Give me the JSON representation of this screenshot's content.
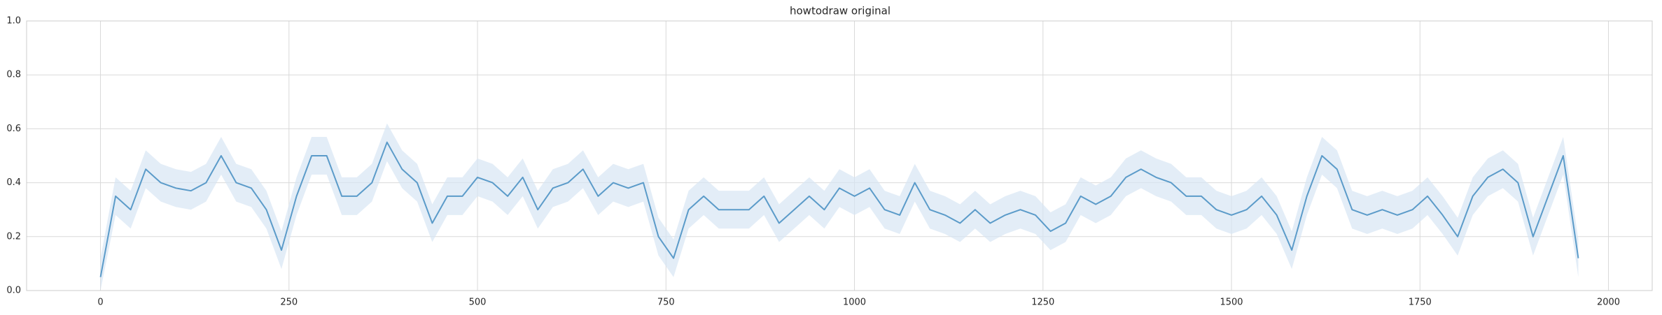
{
  "chart_data": {
    "type": "line",
    "title": "howtodraw original",
    "x": [
      0,
      20,
      40,
      60,
      80,
      100,
      120,
      140,
      160,
      180,
      200,
      220,
      240,
      260,
      280,
      300,
      320,
      340,
      360,
      380,
      400,
      420,
      440,
      460,
      480,
      500,
      520,
      540,
      560,
      580,
      600,
      620,
      640,
      660,
      680,
      700,
      720,
      740,
      760,
      780,
      800,
      820,
      840,
      860,
      880,
      900,
      920,
      940,
      960,
      980,
      1000,
      1020,
      1040,
      1060,
      1080,
      1100,
      1120,
      1140,
      1160,
      1180,
      1200,
      1220,
      1240,
      1260,
      1280,
      1300,
      1320,
      1340,
      1360,
      1380,
      1400,
      1420,
      1440,
      1460,
      1480,
      1500,
      1520,
      1540,
      1560,
      1580,
      1600,
      1620,
      1640,
      1660,
      1680,
      1700,
      1720,
      1740,
      1760,
      1780,
      1800,
      1820,
      1840,
      1860,
      1880,
      1900,
      1920,
      1940,
      1960
    ],
    "series": [
      {
        "color": "#5b9bc9",
        "band_color": "#d7e6f3",
        "values": [
          0.05,
          0.35,
          0.3,
          0.45,
          0.4,
          0.38,
          0.37,
          0.4,
          0.5,
          0.4,
          0.38,
          0.3,
          0.15,
          0.35,
          0.5,
          0.5,
          0.35,
          0.35,
          0.4,
          0.55,
          0.45,
          0.4,
          0.25,
          0.35,
          0.35,
          0.42,
          0.4,
          0.35,
          0.42,
          0.3,
          0.38,
          0.4,
          0.45,
          0.35,
          0.4,
          0.38,
          0.4,
          0.2,
          0.12,
          0.3,
          0.35,
          0.3,
          0.3,
          0.3,
          0.35,
          0.25,
          0.3,
          0.35,
          0.3,
          0.38,
          0.35,
          0.38,
          0.3,
          0.28,
          0.4,
          0.3,
          0.28,
          0.25,
          0.3,
          0.25,
          0.28,
          0.3,
          0.28,
          0.22,
          0.25,
          0.35,
          0.32,
          0.35,
          0.42,
          0.45,
          0.42,
          0.4,
          0.35,
          0.35,
          0.3,
          0.28,
          0.3,
          0.35,
          0.28,
          0.15,
          0.35,
          0.5,
          0.45,
          0.3,
          0.28,
          0.3,
          0.28,
          0.3,
          0.35,
          0.28,
          0.2,
          0.35,
          0.42,
          0.45,
          0.4,
          0.2,
          0.35,
          0.5,
          0.12
        ],
        "lower": [
          0.0,
          0.28,
          0.23,
          0.38,
          0.33,
          0.31,
          0.3,
          0.33,
          0.43,
          0.33,
          0.31,
          0.23,
          0.08,
          0.28,
          0.43,
          0.43,
          0.28,
          0.28,
          0.33,
          0.48,
          0.38,
          0.33,
          0.18,
          0.28,
          0.28,
          0.35,
          0.33,
          0.28,
          0.35,
          0.23,
          0.31,
          0.33,
          0.38,
          0.28,
          0.33,
          0.31,
          0.33,
          0.13,
          0.05,
          0.23,
          0.28,
          0.23,
          0.23,
          0.23,
          0.28,
          0.18,
          0.23,
          0.28,
          0.23,
          0.31,
          0.28,
          0.31,
          0.23,
          0.21,
          0.33,
          0.23,
          0.21,
          0.18,
          0.23,
          0.18,
          0.21,
          0.23,
          0.21,
          0.15,
          0.18,
          0.28,
          0.25,
          0.28,
          0.35,
          0.38,
          0.35,
          0.33,
          0.28,
          0.28,
          0.23,
          0.21,
          0.23,
          0.28,
          0.21,
          0.08,
          0.28,
          0.43,
          0.38,
          0.23,
          0.21,
          0.23,
          0.21,
          0.23,
          0.28,
          0.21,
          0.13,
          0.28,
          0.35,
          0.38,
          0.33,
          0.13,
          0.28,
          0.43,
          0.05
        ],
        "upper": [
          0.12,
          0.42,
          0.37,
          0.52,
          0.47,
          0.45,
          0.44,
          0.47,
          0.57,
          0.47,
          0.45,
          0.37,
          0.22,
          0.42,
          0.57,
          0.57,
          0.42,
          0.42,
          0.47,
          0.62,
          0.52,
          0.47,
          0.32,
          0.42,
          0.42,
          0.49,
          0.47,
          0.42,
          0.49,
          0.37,
          0.45,
          0.47,
          0.52,
          0.42,
          0.47,
          0.45,
          0.47,
          0.27,
          0.19,
          0.37,
          0.42,
          0.37,
          0.37,
          0.37,
          0.42,
          0.32,
          0.37,
          0.42,
          0.37,
          0.45,
          0.42,
          0.45,
          0.37,
          0.35,
          0.47,
          0.37,
          0.35,
          0.32,
          0.37,
          0.32,
          0.35,
          0.37,
          0.35,
          0.29,
          0.32,
          0.42,
          0.39,
          0.42,
          0.49,
          0.52,
          0.49,
          0.47,
          0.42,
          0.42,
          0.37,
          0.35,
          0.37,
          0.42,
          0.35,
          0.22,
          0.42,
          0.57,
          0.52,
          0.37,
          0.35,
          0.37,
          0.35,
          0.37,
          0.42,
          0.35,
          0.27,
          0.42,
          0.49,
          0.52,
          0.47,
          0.27,
          0.42,
          0.57,
          0.19
        ]
      }
    ],
    "xlim": [
      -98,
      2058
    ],
    "ylim": [
      0,
      1
    ],
    "xticks": [
      0,
      250,
      500,
      750,
      1000,
      1250,
      1500,
      1750,
      2000
    ],
    "yticks": [
      {
        "value": 0,
        "label": "0.0"
      },
      {
        "value": 0.2,
        "label": "0.2"
      },
      {
        "value": 0.4,
        "label": "0.4"
      },
      {
        "value": 0.6,
        "label": "0.6"
      },
      {
        "value": 0.8,
        "label": "0.8"
      },
      {
        "value": 1,
        "label": "1.0"
      }
    ],
    "grid": true
  }
}
